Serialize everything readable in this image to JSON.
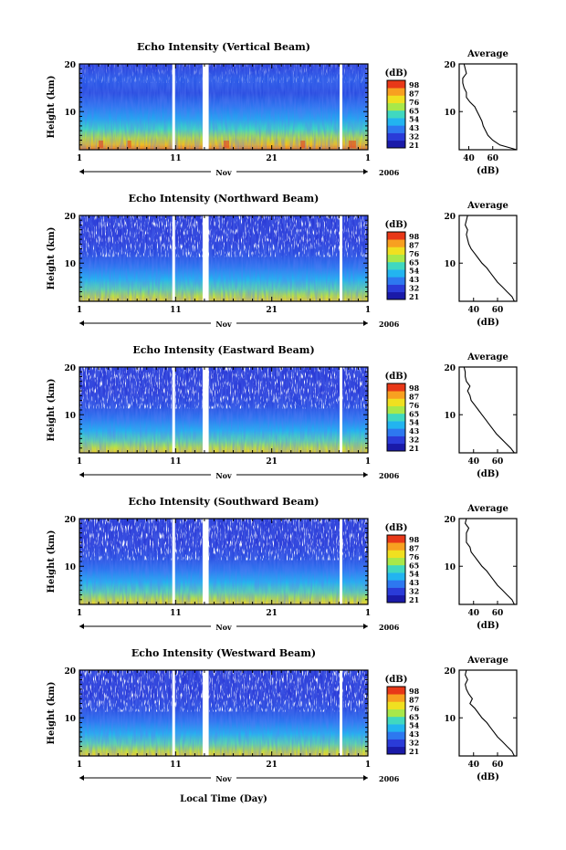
{
  "figure": {
    "xlabel": "Local Time (Day)"
  },
  "chart_data": [
    {
      "type": "heatmap",
      "title": "Echo Intensity (Vertical Beam)",
      "ylabel": "Height (km)",
      "ylim": [
        2,
        20
      ],
      "yticks": [
        "20",
        "10"
      ],
      "xticks": [
        "1",
        "11",
        "21",
        "1"
      ],
      "xlim_days": [
        1,
        31
      ],
      "month_label": "Nov",
      "year_label": "2006",
      "colorbar": {
        "label": "(dB)",
        "levels": [
          "98",
          "87",
          "76",
          "65",
          "54",
          "43",
          "32",
          "21"
        ]
      },
      "gaps_day": [
        10.8,
        14.0,
        14.3,
        28.2
      ],
      "profile": {
        "title": "Average",
        "xlabel": "(dB)",
        "xticks": [
          "40",
          "60"
        ],
        "xlim": [
          32,
          80
        ],
        "height_km": [
          2,
          3,
          4,
          5,
          6,
          7,
          8,
          9,
          10,
          11,
          12,
          13,
          14,
          15,
          16,
          17,
          18,
          19,
          20
        ],
        "db": [
          80,
          66,
          60,
          56,
          54,
          52,
          51,
          49,
          47,
          45,
          41,
          38,
          38,
          36,
          35,
          35,
          38,
          37,
          36
        ]
      }
    },
    {
      "type": "heatmap",
      "title": "Echo Intensity (Northward Beam)",
      "ylabel": "Height (km)",
      "ylim": [
        2,
        20
      ],
      "yticks": [
        "20",
        "10"
      ],
      "xticks": [
        "1",
        "11",
        "21",
        "1"
      ],
      "xlim_days": [
        1,
        31
      ],
      "month_label": "Nov",
      "year_label": "2006",
      "colorbar": {
        "label": "(dB)",
        "levels": [
          "98",
          "87",
          "76",
          "65",
          "54",
          "43",
          "32",
          "21"
        ]
      },
      "gaps_day": [
        10.8,
        14.0,
        14.3,
        28.2
      ],
      "profile": {
        "title": "Average",
        "xlabel": "(dB)",
        "xticks": [
          "40",
          "60"
        ],
        "xlim": [
          28,
          76
        ],
        "height_km": [
          2,
          3,
          4,
          5,
          6,
          7,
          8,
          9,
          10,
          11,
          12,
          13,
          14,
          15,
          16,
          17,
          18,
          19,
          20
        ],
        "db": [
          74,
          72,
          68,
          64,
          60,
          57,
          54,
          51,
          47,
          44,
          41,
          38,
          36,
          35,
          34,
          35,
          33,
          34,
          35
        ]
      }
    },
    {
      "type": "heatmap",
      "title": "Echo Intensity (Eastward Beam)",
      "ylabel": "Height (km)",
      "ylim": [
        2,
        20
      ],
      "yticks": [
        "20",
        "10"
      ],
      "xticks": [
        "1",
        "11",
        "21",
        "1"
      ],
      "xlim_days": [
        1,
        31
      ],
      "month_label": "Nov",
      "year_label": "2006",
      "colorbar": {
        "label": "(dB)",
        "levels": [
          "98",
          "87",
          "76",
          "65",
          "54",
          "43",
          "32",
          "21"
        ]
      },
      "gaps_day": [
        10.8,
        14.0,
        14.3,
        28.2
      ],
      "profile": {
        "title": "Average",
        "xlabel": "(dB)",
        "xticks": [
          "40",
          "60"
        ],
        "xlim": [
          28,
          76
        ],
        "height_km": [
          2,
          3,
          4,
          5,
          6,
          7,
          8,
          9,
          10,
          11,
          12,
          13,
          14,
          15,
          16,
          17,
          18,
          19,
          20
        ],
        "db": [
          74,
          71,
          67,
          63,
          59,
          56,
          53,
          50,
          47,
          44,
          41,
          38,
          37,
          35,
          37,
          34,
          33,
          33,
          32
        ]
      }
    },
    {
      "type": "heatmap",
      "title": "Echo Intensity (Southward Beam)",
      "ylabel": "Height (km)",
      "ylim": [
        2,
        20
      ],
      "yticks": [
        "20",
        "10"
      ],
      "xticks": [
        "1",
        "11",
        "21",
        "1"
      ],
      "xlim_days": [
        1,
        31
      ],
      "month_label": "Nov",
      "year_label": "2006",
      "colorbar": {
        "label": "(dB)",
        "levels": [
          "98",
          "87",
          "76",
          "65",
          "54",
          "43",
          "32",
          "21"
        ]
      },
      "gaps_day": [
        10.8,
        14.0,
        14.3,
        28.2
      ],
      "profile": {
        "title": "Average",
        "xlabel": "(dB)",
        "xticks": [
          "40",
          "60"
        ],
        "xlim": [
          28,
          76
        ],
        "height_km": [
          2,
          3,
          4,
          5,
          6,
          7,
          8,
          9,
          10,
          11,
          12,
          13,
          14,
          15,
          16,
          17,
          18,
          19,
          20
        ],
        "db": [
          74,
          72,
          68,
          64,
          60,
          57,
          54,
          51,
          47,
          44,
          41,
          38,
          37,
          34,
          34,
          34,
          36,
          33,
          34
        ]
      }
    },
    {
      "type": "heatmap",
      "title": "Echo Intensity (Westward Beam)",
      "ylabel": "Height (km)",
      "ylim": [
        2,
        20
      ],
      "yticks": [
        "20",
        "10"
      ],
      "xticks": [
        "1",
        "11",
        "21",
        "1"
      ],
      "xlim_days": [
        1,
        31
      ],
      "month_label": "Nov",
      "year_label": "2006",
      "colorbar": {
        "label": "(dB)",
        "levels": [
          "98",
          "87",
          "76",
          "65",
          "54",
          "43",
          "32",
          "21"
        ]
      },
      "gaps_day": [
        10.8,
        14.0,
        14.3,
        28.2
      ],
      "profile": {
        "title": "Average",
        "xlabel": "(dB)",
        "xticks": [
          "40",
          "60"
        ],
        "xlim": [
          28,
          76
        ],
        "height_km": [
          2,
          3,
          4,
          5,
          6,
          7,
          8,
          9,
          10,
          11,
          12,
          13,
          14,
          15,
          16,
          17,
          18,
          19,
          20
        ],
        "db": [
          74,
          72,
          68,
          64,
          60,
          57,
          54,
          51,
          47,
          44,
          41,
          37,
          39,
          36,
          34,
          33,
          35,
          33,
          34
        ]
      }
    }
  ]
}
